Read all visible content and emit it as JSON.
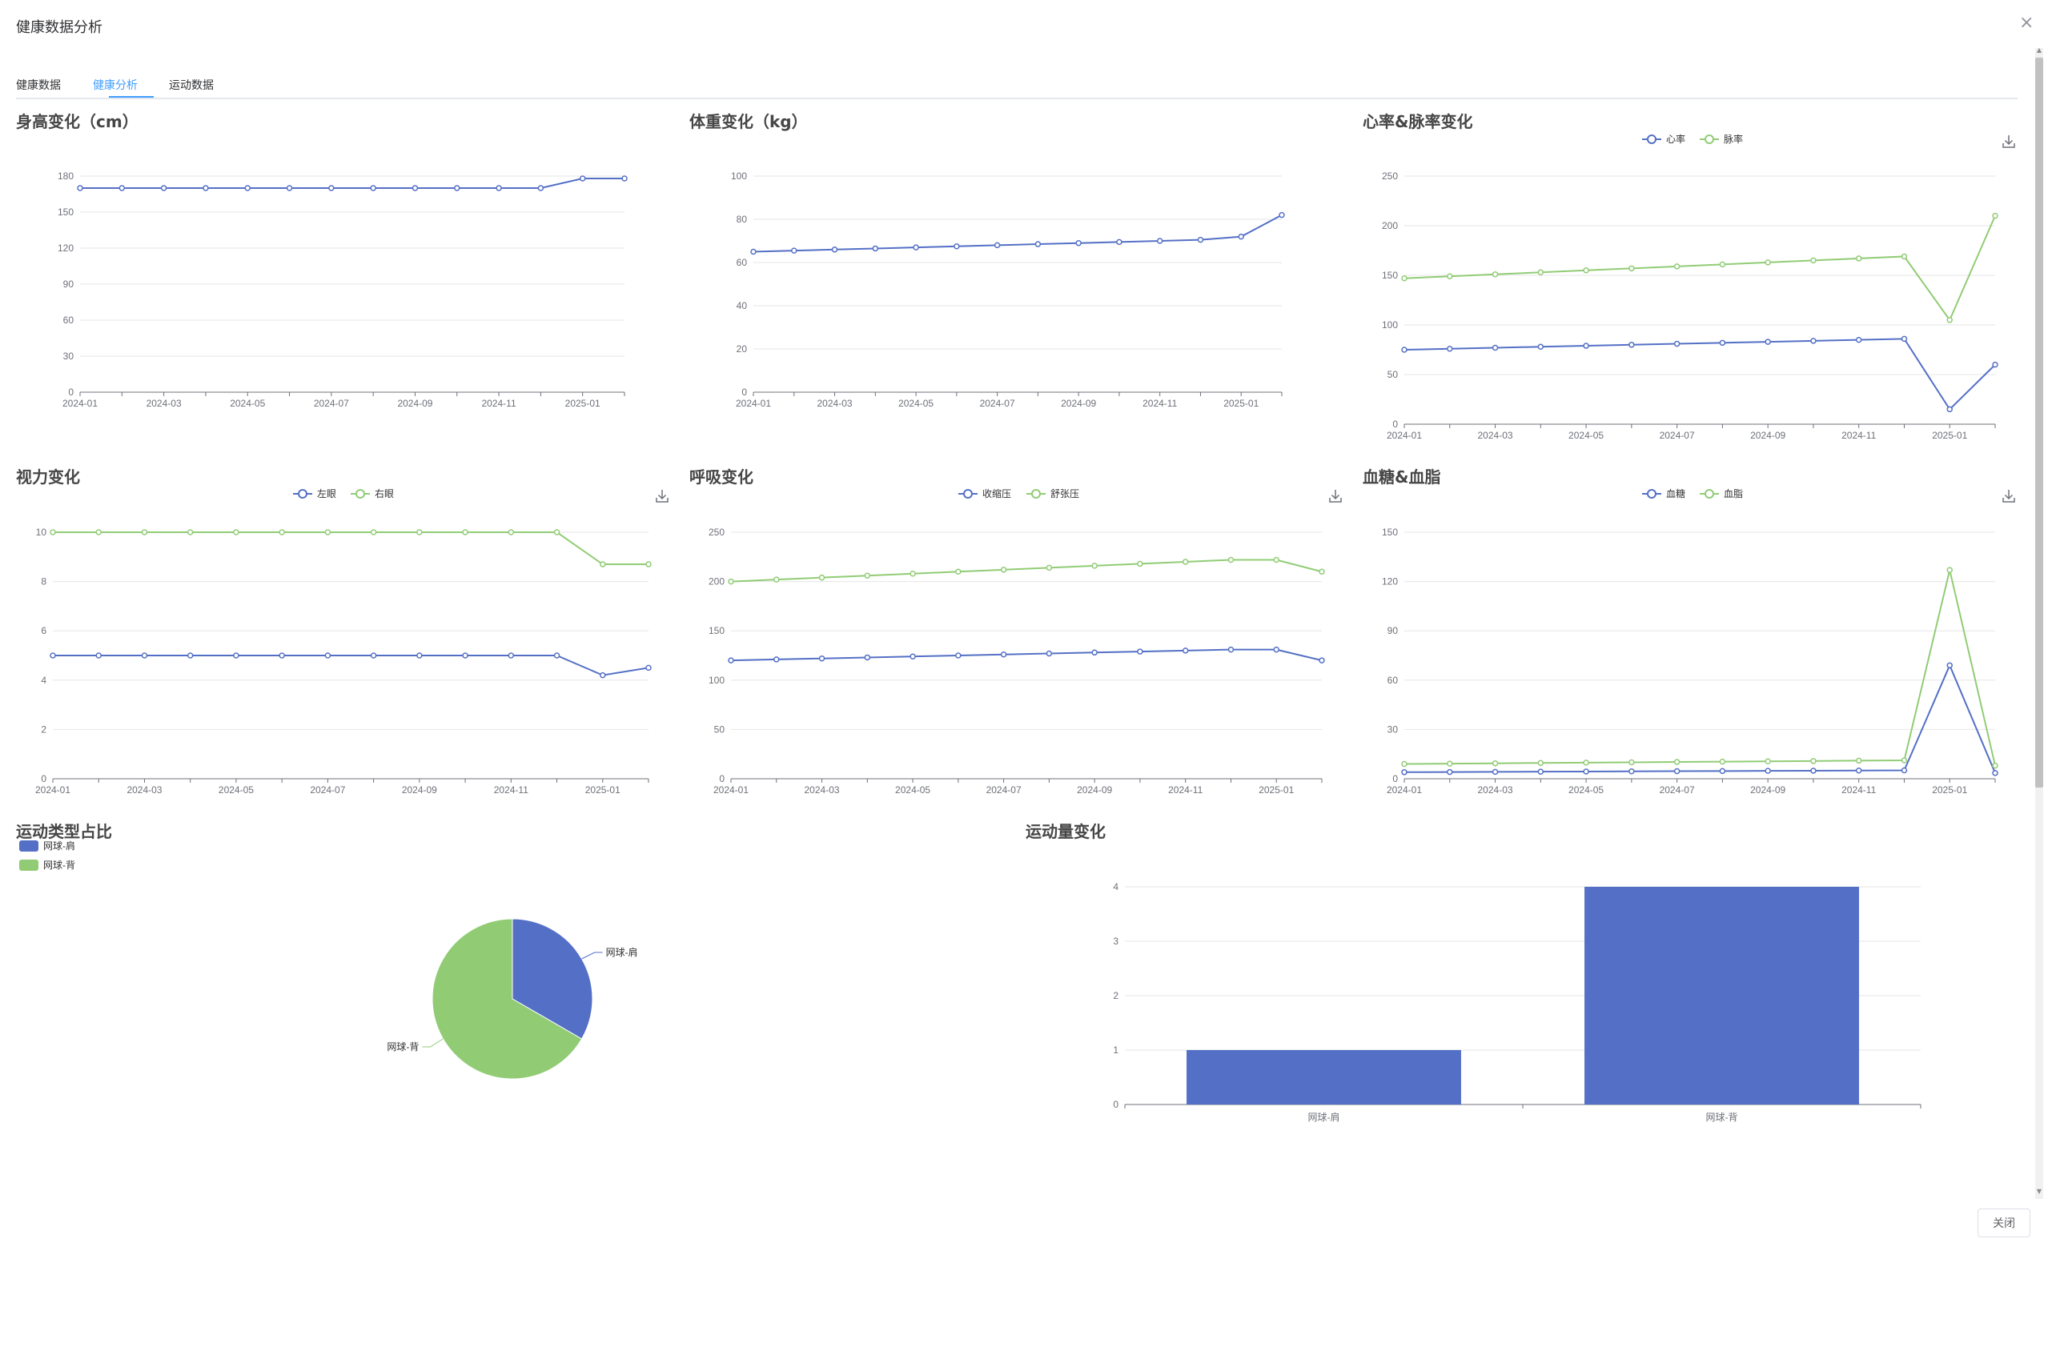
{
  "dialog": {
    "title": "健康数据分析",
    "close_label": "关闭"
  },
  "tabs": [
    {
      "label": "健康数据"
    },
    {
      "label": "健康分析"
    },
    {
      "label": "运动数据"
    }
  ],
  "months": [
    "2024-01",
    "2024-02",
    "2024-03",
    "2024-04",
    "2024-05",
    "2024-06",
    "2024-07",
    "2024-08",
    "2024-09",
    "2024-10",
    "2024-11",
    "2024-12",
    "2025-01",
    "2025-02"
  ],
  "colors": {
    "blue": "#5470c6",
    "green": "#91cc75",
    "grid": "#e6e6e6",
    "axis": "#6e7079"
  },
  "chart_data": [
    {
      "id": "height",
      "type": "line",
      "title": "身高变化（cm）",
      "ylim": [
        0,
        180
      ],
      "yticks": [
        0,
        30,
        60,
        90,
        120,
        150,
        180
      ],
      "x": [
        "2024-01",
        "2024-02",
        "2024-03",
        "2024-04",
        "2024-05",
        "2024-06",
        "2024-07",
        "2024-08",
        "2024-09",
        "2024-10",
        "2024-11",
        "2024-12",
        "2025-01",
        "2025-02"
      ],
      "xticks": [
        "2024-01",
        "2024-03",
        "2024-05",
        "2024-07",
        "2024-09",
        "2024-11",
        "2025-01"
      ],
      "grid": true,
      "legend": "none",
      "series": [
        {
          "color": "#5470c6",
          "values": [
            170,
            170,
            170,
            170,
            170,
            170,
            170,
            170,
            170,
            170,
            170,
            170,
            178,
            178
          ]
        }
      ]
    },
    {
      "id": "weight",
      "type": "line",
      "title": "体重变化（kg）",
      "ylim": [
        0,
        100
      ],
      "yticks": [
        0,
        20,
        40,
        60,
        80,
        100
      ],
      "x": [
        "2024-01",
        "2024-02",
        "2024-03",
        "2024-04",
        "2024-05",
        "2024-06",
        "2024-07",
        "2024-08",
        "2024-09",
        "2024-10",
        "2024-11",
        "2024-12",
        "2025-01",
        "2025-02"
      ],
      "xticks": [
        "2024-01",
        "2024-03",
        "2024-05",
        "2024-07",
        "2024-09",
        "2024-11",
        "2025-01"
      ],
      "grid": true,
      "legend": "none",
      "series": [
        {
          "color": "#5470c6",
          "values": [
            65,
            65.5,
            66,
            66.5,
            67,
            67.5,
            68,
            68.5,
            69,
            69.5,
            70,
            70.5,
            72,
            82
          ]
        }
      ]
    },
    {
      "id": "heart",
      "type": "line",
      "title": "心率&脉率变化",
      "ylim": [
        0,
        250
      ],
      "yticks": [
        0,
        50,
        100,
        150,
        200,
        250
      ],
      "x": [
        "2024-01",
        "2024-02",
        "2024-03",
        "2024-04",
        "2024-05",
        "2024-06",
        "2024-07",
        "2024-08",
        "2024-09",
        "2024-10",
        "2024-11",
        "2024-12",
        "2025-01",
        "2025-02"
      ],
      "xticks": [
        "2024-01",
        "2024-03",
        "2024-05",
        "2024-07",
        "2024-09",
        "2024-11",
        "2025-01"
      ],
      "grid": true,
      "legend": "top-center",
      "series": [
        {
          "name": "心率",
          "color": "#5470c6",
          "values": [
            75,
            76,
            77,
            78,
            79,
            80,
            81,
            82,
            83,
            84,
            85,
            86,
            15,
            60
          ]
        },
        {
          "name": "脉率",
          "color": "#91cc75",
          "values": [
            147,
            149,
            151,
            153,
            155,
            157,
            159,
            161,
            163,
            165,
            167,
            169,
            105,
            210
          ]
        }
      ]
    },
    {
      "id": "vision",
      "type": "line",
      "title": "视力变化",
      "ylim": [
        0,
        10
      ],
      "yticks": [
        0,
        2,
        4,
        6,
        8,
        10
      ],
      "x": [
        "2024-01",
        "2024-02",
        "2024-03",
        "2024-04",
        "2024-05",
        "2024-06",
        "2024-07",
        "2024-08",
        "2024-09",
        "2024-10",
        "2024-11",
        "2024-12",
        "2025-01",
        "2025-02"
      ],
      "xticks": [
        "2024-01",
        "2024-03",
        "2024-05",
        "2024-07",
        "2024-09",
        "2024-11",
        "2025-01"
      ],
      "grid": true,
      "legend": "top-center",
      "series": [
        {
          "name": "左眼",
          "color": "#5470c6",
          "values": [
            5,
            5,
            5,
            5,
            5,
            5,
            5,
            5,
            5,
            5,
            5,
            5,
            4.2,
            4.5
          ]
        },
        {
          "name": "右眼",
          "color": "#91cc75",
          "values": [
            10,
            10,
            10,
            10,
            10,
            10,
            10,
            10,
            10,
            10,
            10,
            10,
            8.7,
            8.7
          ]
        }
      ]
    },
    {
      "id": "breath",
      "type": "line",
      "title": "呼吸变化",
      "ylim": [
        0,
        250
      ],
      "yticks": [
        0,
        50,
        100,
        150,
        200,
        250
      ],
      "x": [
        "2024-01",
        "2024-02",
        "2024-03",
        "2024-04",
        "2024-05",
        "2024-06",
        "2024-07",
        "2024-08",
        "2024-09",
        "2024-10",
        "2024-11",
        "2024-12",
        "2025-01",
        "2025-02"
      ],
      "xticks": [
        "2024-01",
        "2024-03",
        "2024-05",
        "2024-07",
        "2024-09",
        "2024-11",
        "2025-01"
      ],
      "grid": true,
      "legend": "top-center",
      "series": [
        {
          "name": "收缩压",
          "color": "#5470c6",
          "values": [
            120,
            121,
            122,
            123,
            124,
            125,
            126,
            127,
            128,
            129,
            130,
            131,
            131,
            120
          ]
        },
        {
          "name": "舒张压",
          "color": "#91cc75",
          "values": [
            200,
            202,
            204,
            206,
            208,
            210,
            212,
            214,
            216,
            218,
            220,
            222,
            222,
            210
          ]
        }
      ]
    },
    {
      "id": "sugar",
      "type": "line",
      "title": "血糖&血脂",
      "ylim": [
        0,
        150
      ],
      "yticks": [
        0,
        30,
        60,
        90,
        120,
        150
      ],
      "x": [
        "2024-01",
        "2024-02",
        "2024-03",
        "2024-04",
        "2024-05",
        "2024-06",
        "2024-07",
        "2024-08",
        "2024-09",
        "2024-10",
        "2024-11",
        "2024-12",
        "2025-01",
        "2025-02"
      ],
      "xticks": [
        "2024-01",
        "2024-03",
        "2024-05",
        "2024-07",
        "2024-09",
        "2024-11",
        "2025-01"
      ],
      "grid": true,
      "legend": "top-center",
      "series": [
        {
          "name": "血糖",
          "color": "#5470c6",
          "values": [
            4,
            4.1,
            4.2,
            4.3,
            4.4,
            4.5,
            4.6,
            4.7,
            4.8,
            4.9,
            5.0,
            5.1,
            69,
            3.5
          ]
        },
        {
          "name": "血脂",
          "color": "#91cc75",
          "values": [
            9,
            9.2,
            9.4,
            9.6,
            9.8,
            10,
            10.2,
            10.4,
            10.6,
            10.8,
            11,
            11.2,
            127,
            8
          ]
        }
      ]
    },
    {
      "id": "sport_pie",
      "type": "pie",
      "title": "运动类型占比",
      "legend": "top-left",
      "slices": [
        {
          "name": "网球-肩",
          "value": 1,
          "color": "#5470c6"
        },
        {
          "name": "网球-背",
          "value": 2,
          "color": "#91cc75"
        }
      ]
    },
    {
      "id": "sport_bar",
      "type": "bar",
      "title": "运动量变化",
      "categories": [
        "网球-肩",
        "网球-背"
      ],
      "values": [
        1,
        4
      ],
      "ylim": [
        0,
        4
      ],
      "yticks": [
        0,
        1,
        2,
        3,
        4
      ],
      "color": "#5470c6",
      "grid": true
    }
  ]
}
